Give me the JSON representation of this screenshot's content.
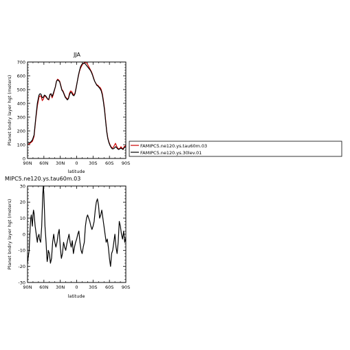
{
  "chart_data": [
    {
      "type": "line",
      "title": "JJA",
      "xlabel": "latitude",
      "ylabel": "Planet bndry layer hgt (meters)",
      "xlim": [
        90,
        -90
      ],
      "ylim": [
        0,
        700
      ],
      "x_ticks": [
        90,
        60,
        30,
        0,
        -30,
        -60,
        -90
      ],
      "x_tick_labels": [
        "90N",
        "60N",
        "30N",
        "0",
        "30S",
        "60S",
        "90S"
      ],
      "y_ticks": [
        0,
        100,
        200,
        300,
        400,
        500,
        600,
        700
      ],
      "y_tick_labels": [
        "0",
        "100",
        "200",
        "300",
        "400",
        "500",
        "600",
        "700"
      ],
      "series": [
        {
          "name": "FAMIPC5.ne120.ys.tau60m.03",
          "color": "#cc0000",
          "x": [
            90,
            87,
            84,
            81,
            78,
            75,
            72,
            69,
            67,
            65,
            63,
            61,
            59,
            57,
            55,
            53,
            51,
            49,
            47,
            45,
            43,
            41,
            39,
            37,
            35,
            33,
            31,
            29,
            27,
            25,
            23,
            21,
            19,
            17,
            15,
            13,
            11,
            9,
            7,
            5,
            3,
            1,
            -1,
            -3,
            -5,
            -7,
            -9,
            -11,
            -13,
            -15,
            -17,
            -19,
            -21,
            -23,
            -25,
            -27,
            -29,
            -31,
            -33,
            -35,
            -37,
            -39,
            -41,
            -43,
            -45,
            -47,
            -49,
            -51,
            -53,
            -55,
            -57,
            -59,
            -61,
            -63,
            -65,
            -67,
            -69,
            -71,
            -73,
            -75,
            -77,
            -79,
            -81,
            -83,
            -85,
            -87,
            -90
          ],
          "values": [
            100,
            105,
            115,
            125,
            160,
            280,
            380,
            445,
            455,
            450,
            420,
            430,
            455,
            450,
            440,
            430,
            425,
            460,
            470,
            440,
            460,
            490,
            520,
            560,
            575,
            570,
            560,
            530,
            500,
            490,
            470,
            450,
            440,
            430,
            440,
            475,
            490,
            485,
            470,
            460,
            475,
            515,
            555,
            595,
            630,
            655,
            670,
            685,
            690,
            700,
            695,
            690,
            675,
            660,
            645,
            630,
            610,
            585,
            560,
            545,
            535,
            530,
            520,
            515,
            500,
            470,
            420,
            360,
            280,
            200,
            150,
            120,
            100,
            85,
            75,
            80,
            95,
            110,
            90,
            75,
            70,
            72,
            85,
            75,
            70,
            85,
            95
          ]
        },
        {
          "name": "FAMIPC5.ne120.ys.30lev.01",
          "color": "#000000",
          "x": [
            90,
            87,
            84,
            81,
            78,
            75,
            72,
            69,
            67,
            65,
            63,
            61,
            59,
            57,
            55,
            53,
            51,
            49,
            47,
            45,
            43,
            41,
            39,
            37,
            35,
            33,
            31,
            29,
            27,
            25,
            23,
            21,
            19,
            17,
            15,
            13,
            11,
            9,
            7,
            5,
            3,
            1,
            -1,
            -3,
            -5,
            -7,
            -9,
            -11,
            -13,
            -15,
            -17,
            -19,
            -21,
            -23,
            -25,
            -27,
            -29,
            -31,
            -33,
            -35,
            -37,
            -39,
            -41,
            -43,
            -45,
            -47,
            -49,
            -51,
            -53,
            -55,
            -57,
            -59,
            -61,
            -63,
            -65,
            -67,
            -69,
            -71,
            -73,
            -75,
            -77,
            -79,
            -81,
            -83,
            -85,
            -87,
            -90
          ],
          "values": [
            110,
            115,
            120,
            135,
            170,
            290,
            400,
            460,
            470,
            465,
            440,
            445,
            460,
            455,
            445,
            430,
            430,
            465,
            470,
            450,
            470,
            495,
            520,
            560,
            570,
            565,
            555,
            525,
            495,
            485,
            465,
            445,
            435,
            425,
            435,
            465,
            480,
            475,
            460,
            455,
            470,
            510,
            555,
            600,
            635,
            665,
            680,
            690,
            690,
            690,
            680,
            670,
            660,
            650,
            640,
            625,
            605,
            580,
            560,
            545,
            530,
            525,
            515,
            505,
            490,
            460,
            410,
            350,
            270,
            195,
            145,
            115,
            95,
            80,
            70,
            70,
            75,
            85,
            80,
            70,
            65,
            70,
            75,
            70,
            65,
            80,
            85
          ]
        }
      ]
    },
    {
      "type": "line",
      "title": "MIPC5.ne120.ys.tau60m.03",
      "xlabel": "latitude",
      "ylabel": "Planet bndry layer hgt (meters)",
      "xlim": [
        90,
        -90
      ],
      "ylim": [
        -30,
        30
      ],
      "x_ticks": [
        90,
        60,
        30,
        0,
        -30,
        -60,
        -90
      ],
      "x_tick_labels": [
        "90N",
        "60N",
        "30N",
        "0",
        "30S",
        "60S",
        "90S"
      ],
      "y_ticks": [
        -30,
        -20,
        -10,
        0,
        10,
        20,
        30
      ],
      "y_tick_labels": [
        "-30",
        "-20",
        "-10",
        "0",
        "10",
        "20",
        "30"
      ],
      "series": [
        {
          "color": "#000000",
          "x": [
            90,
            89,
            87,
            85,
            84,
            83,
            81,
            80,
            79,
            78,
            76,
            74,
            72,
            71,
            69,
            68,
            66,
            64,
            63,
            62,
            61,
            60,
            59,
            58,
            57,
            56,
            55,
            54,
            53,
            52,
            50,
            48,
            46,
            44,
            42,
            40,
            38,
            36,
            34,
            32,
            30,
            28,
            26,
            24,
            22,
            20,
            18,
            16,
            14,
            12,
            10,
            8,
            6,
            4,
            2,
            0,
            -2,
            -4,
            -6,
            -8,
            -10,
            -12,
            -14,
            -16,
            -18,
            -20,
            -22,
            -24,
            -26,
            -28,
            -30,
            -32,
            -34,
            -36,
            -38,
            -40,
            -42,
            -44,
            -46,
            -48,
            -50,
            -52,
            -54,
            -56,
            -58,
            -60,
            -62,
            -64,
            -66,
            -68,
            -70,
            -72,
            -74,
            -76,
            -78,
            -80,
            -82,
            -84,
            -86,
            -88,
            -90
          ],
          "values": [
            -18,
            -15,
            -10,
            5,
            10,
            12,
            5,
            12,
            15,
            13,
            5,
            0,
            -5,
            -2,
            0,
            -3,
            -5,
            5,
            15,
            25,
            30,
            25,
            15,
            5,
            0,
            -5,
            -12,
            -17,
            -15,
            -10,
            -12,
            -18,
            -15,
            -5,
            0,
            -5,
            -8,
            -5,
            0,
            3,
            -8,
            -15,
            -12,
            -5,
            -8,
            -10,
            -6,
            -3,
            0,
            -5,
            -8,
            -4,
            -12,
            -8,
            -5,
            -3,
            0,
            2,
            -5,
            -10,
            -12,
            -8,
            -5,
            5,
            10,
            12,
            10,
            8,
            5,
            3,
            5,
            8,
            15,
            20,
            22,
            18,
            10,
            12,
            15,
            10,
            5,
            0,
            -5,
            -3,
            -8,
            -15,
            -20,
            -12,
            -10,
            -5,
            0,
            -8,
            -12,
            -5,
            8,
            5,
            0,
            -3,
            2,
            -5,
            -2
          ]
        }
      ]
    }
  ]
}
